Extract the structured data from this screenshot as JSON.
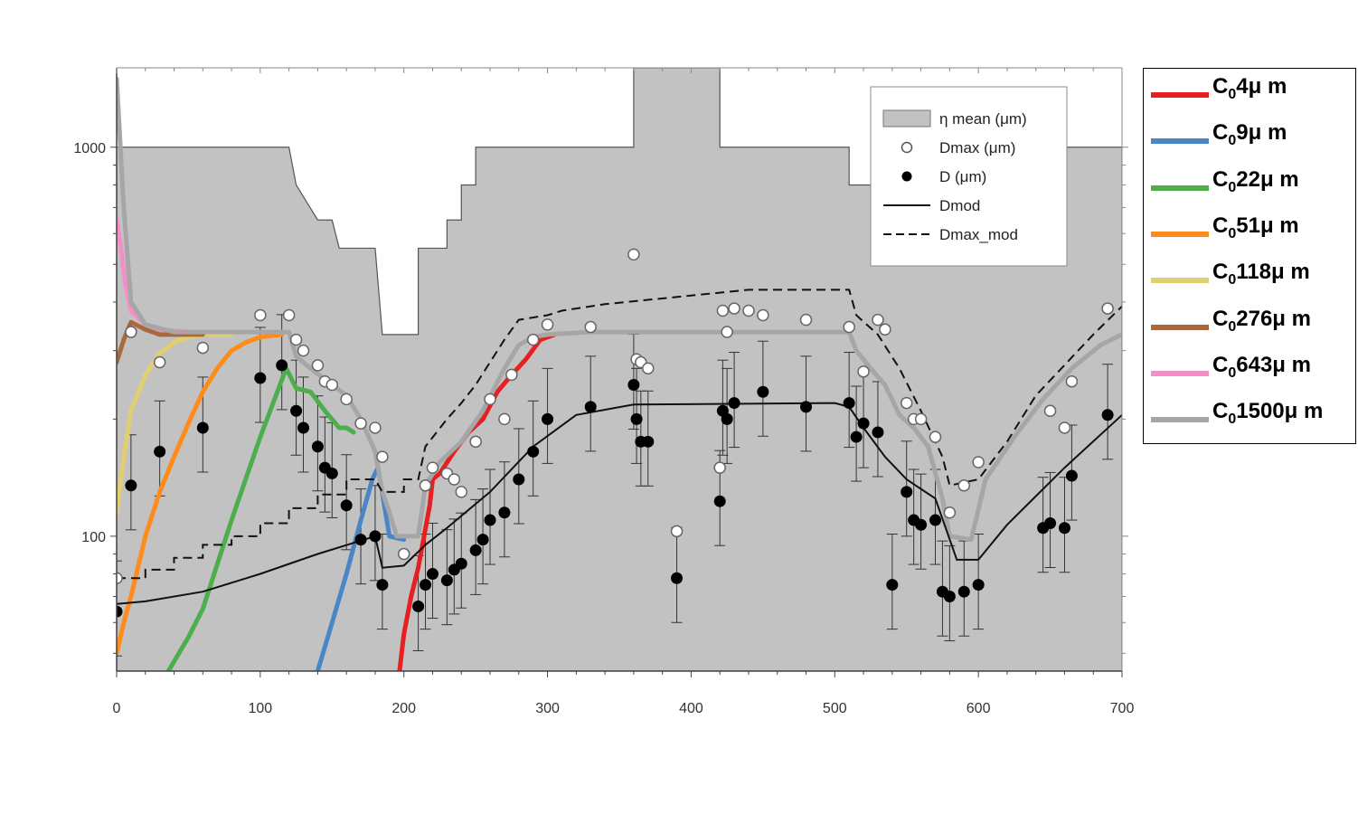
{
  "chart_data": {
    "type": "line",
    "xlim": [
      0,
      700
    ],
    "ylim": [
      45,
      1600
    ],
    "yscale": "log",
    "grid": false,
    "x_ticks": [
      0,
      100,
      200,
      300,
      400,
      500,
      600,
      700
    ],
    "y_ticks": [
      100,
      1000
    ],
    "eta_mean": {
      "label": "η mean (μm)",
      "color": "#c2c2c2",
      "steps": [
        [
          0,
          1000
        ],
        [
          120,
          1000
        ],
        [
          125,
          800
        ],
        [
          140,
          650
        ],
        [
          150,
          650
        ],
        [
          155,
          550
        ],
        [
          175,
          550
        ],
        [
          180,
          550
        ],
        [
          185,
          330
        ],
        [
          210,
          330
        ],
        [
          210,
          550
        ],
        [
          230,
          550
        ],
        [
          230,
          650
        ],
        [
          240,
          650
        ],
        [
          240,
          800
        ],
        [
          250,
          800
        ],
        [
          250,
          1000
        ],
        [
          360,
          1000
        ],
        [
          360,
          1600
        ],
        [
          420,
          1600
        ],
        [
          420,
          1000
        ],
        [
          510,
          1000
        ],
        [
          510,
          800
        ],
        [
          570,
          800
        ],
        [
          570,
          1000
        ],
        [
          700,
          1000
        ]
      ]
    },
    "dmax_obs": {
      "label": "Dmax (μm)",
      "points": [
        [
          0,
          78
        ],
        [
          10,
          335
        ],
        [
          30,
          280
        ],
        [
          60,
          305
        ],
        [
          100,
          370
        ],
        [
          120,
          370
        ],
        [
          125,
          320
        ],
        [
          130,
          300
        ],
        [
          140,
          275
        ],
        [
          145,
          250
        ],
        [
          150,
          245
        ],
        [
          160,
          225
        ],
        [
          170,
          195
        ],
        [
          180,
          190
        ],
        [
          185,
          160
        ],
        [
          200,
          90
        ],
        [
          215,
          135
        ],
        [
          220,
          150
        ],
        [
          230,
          145
        ],
        [
          235,
          140
        ],
        [
          240,
          130
        ],
        [
          250,
          175
        ],
        [
          260,
          225
        ],
        [
          270,
          200
        ],
        [
          275,
          260
        ],
        [
          290,
          320
        ],
        [
          300,
          350
        ],
        [
          330,
          345
        ],
        [
          360,
          530
        ],
        [
          362,
          285
        ],
        [
          365,
          280
        ],
        [
          370,
          270
        ],
        [
          390,
          103
        ],
        [
          420,
          150
        ],
        [
          422,
          380
        ],
        [
          425,
          335
        ],
        [
          430,
          385
        ],
        [
          440,
          380
        ],
        [
          450,
          370
        ],
        [
          480,
          360
        ],
        [
          510,
          345
        ],
        [
          520,
          265
        ],
        [
          530,
          360
        ],
        [
          535,
          340
        ],
        [
          550,
          220
        ],
        [
          555,
          200
        ],
        [
          560,
          200
        ],
        [
          570,
          180
        ],
        [
          580,
          115
        ],
        [
          590,
          135
        ],
        [
          600,
          155
        ],
        [
          650,
          210
        ],
        [
          660,
          190
        ],
        [
          665,
          250
        ],
        [
          690,
          385
        ]
      ]
    },
    "d_obs": {
      "label": "D (μm)",
      "points": [
        [
          0,
          64
        ],
        [
          10,
          135
        ],
        [
          30,
          165
        ],
        [
          60,
          190
        ],
        [
          100,
          255
        ],
        [
          115,
          275
        ],
        [
          125,
          210
        ],
        [
          130,
          190
        ],
        [
          140,
          170
        ],
        [
          145,
          150
        ],
        [
          150,
          145
        ],
        [
          160,
          120
        ],
        [
          170,
          98
        ],
        [
          180,
          100
        ],
        [
          185,
          75
        ],
        [
          210,
          66
        ],
        [
          215,
          75
        ],
        [
          220,
          80
        ],
        [
          230,
          77
        ],
        [
          235,
          82
        ],
        [
          240,
          85
        ],
        [
          250,
          92
        ],
        [
          255,
          98
        ],
        [
          260,
          110
        ],
        [
          270,
          115
        ],
        [
          280,
          140
        ],
        [
          290,
          165
        ],
        [
          300,
          200
        ],
        [
          330,
          215
        ],
        [
          360,
          245
        ],
        [
          362,
          200
        ],
        [
          365,
          175
        ],
        [
          370,
          175
        ],
        [
          390,
          78
        ],
        [
          420,
          123
        ],
        [
          422,
          210
        ],
        [
          425,
          200
        ],
        [
          430,
          220
        ],
        [
          450,
          235
        ],
        [
          480,
          215
        ],
        [
          510,
          220
        ],
        [
          515,
          180
        ],
        [
          520,
          195
        ],
        [
          530,
          185
        ],
        [
          540,
          75
        ],
        [
          550,
          130
        ],
        [
          555,
          110
        ],
        [
          560,
          107
        ],
        [
          570,
          110
        ],
        [
          575,
          72
        ],
        [
          580,
          70
        ],
        [
          590,
          72
        ],
        [
          600,
          75
        ],
        [
          645,
          105
        ],
        [
          650,
          108
        ],
        [
          660,
          105
        ],
        [
          665,
          143
        ],
        [
          690,
          205
        ]
      ]
    },
    "d_mod": {
      "label": "Dmod",
      "points": [
        [
          0,
          67
        ],
        [
          20,
          68
        ],
        [
          60,
          72
        ],
        [
          100,
          80
        ],
        [
          140,
          90
        ],
        [
          180,
          100
        ],
        [
          185,
          83
        ],
        [
          200,
          84
        ],
        [
          215,
          95
        ],
        [
          230,
          105
        ],
        [
          260,
          130
        ],
        [
          290,
          170
        ],
        [
          320,
          205
        ],
        [
          360,
          218
        ],
        [
          500,
          220
        ],
        [
          510,
          215
        ],
        [
          520,
          190
        ],
        [
          535,
          160
        ],
        [
          550,
          140
        ],
        [
          570,
          125
        ],
        [
          585,
          87
        ],
        [
          600,
          87
        ],
        [
          620,
          107
        ],
        [
          660,
          150
        ],
        [
          700,
          205
        ]
      ]
    },
    "dmax_mod": {
      "label": "Dmax_mod",
      "points": [
        [
          0,
          78
        ],
        [
          20,
          78
        ],
        [
          20,
          82
        ],
        [
          40,
          82
        ],
        [
          40,
          88
        ],
        [
          60,
          88
        ],
        [
          60,
          95
        ],
        [
          80,
          95
        ],
        [
          80,
          100
        ],
        [
          100,
          100
        ],
        [
          100,
          108
        ],
        [
          120,
          108
        ],
        [
          120,
          118
        ],
        [
          140,
          118
        ],
        [
          140,
          128
        ],
        [
          160,
          128
        ],
        [
          160,
          140
        ],
        [
          180,
          140
        ],
        [
          180,
          140
        ],
        [
          185,
          130
        ],
        [
          200,
          130
        ],
        [
          200,
          140
        ],
        [
          210,
          140
        ],
        [
          215,
          170
        ],
        [
          230,
          200
        ],
        [
          240,
          220
        ],
        [
          250,
          245
        ],
        [
          260,
          280
        ],
        [
          270,
          320
        ],
        [
          280,
          360
        ],
        [
          300,
          370
        ],
        [
          310,
          380
        ],
        [
          340,
          395
        ],
        [
          440,
          430
        ],
        [
          510,
          430
        ],
        [
          515,
          370
        ],
        [
          530,
          330
        ],
        [
          545,
          270
        ],
        [
          560,
          210
        ],
        [
          575,
          160
        ],
        [
          580,
          135
        ],
        [
          600,
          140
        ],
        [
          620,
          175
        ],
        [
          640,
          230
        ],
        [
          680,
          330
        ],
        [
          700,
          390
        ]
      ]
    },
    "model_series": [
      {
        "name": "C04μ m",
        "c0": "4",
        "color": "#e62020",
        "points": [
          [
            197,
            45
          ],
          [
            200,
            56
          ],
          [
            205,
            70
          ],
          [
            210,
            83
          ],
          [
            218,
            120
          ],
          [
            220,
            140
          ],
          [
            225,
            145
          ],
          [
            235,
            165
          ],
          [
            245,
            185
          ],
          [
            255,
            200
          ],
          [
            265,
            235
          ],
          [
            275,
            260
          ],
          [
            285,
            285
          ],
          [
            295,
            320
          ],
          [
            305,
            330
          ]
        ]
      },
      {
        "name": "C09μ m",
        "c0": "9",
        "color": "#4a86c6",
        "points": [
          [
            140,
            45
          ],
          [
            150,
            60
          ],
          [
            160,
            80
          ],
          [
            170,
            110
          ],
          [
            178,
            140
          ],
          [
            182,
            150
          ],
          [
            190,
            100
          ],
          [
            200,
            98
          ]
        ]
      },
      {
        "name": "C022μ m",
        "c0": "22",
        "color": "#4cae4c",
        "points": [
          [
            36,
            45
          ],
          [
            50,
            55
          ],
          [
            60,
            65
          ],
          [
            80,
            110
          ],
          [
            100,
            180
          ],
          [
            110,
            225
          ],
          [
            118,
            270
          ],
          [
            125,
            240
          ],
          [
            135,
            235
          ],
          [
            145,
            210
          ],
          [
            155,
            190
          ],
          [
            160,
            190
          ],
          [
            165,
            185
          ]
        ]
      },
      {
        "name": "C051μ m",
        "c0": "51",
        "color": "#ff8c1a",
        "points": [
          [
            0,
            50
          ],
          [
            5,
            60
          ],
          [
            10,
            70
          ],
          [
            20,
            100
          ],
          [
            30,
            130
          ],
          [
            40,
            160
          ],
          [
            50,
            195
          ],
          [
            60,
            235
          ],
          [
            70,
            270
          ],
          [
            80,
            300
          ],
          [
            90,
            315
          ],
          [
            100,
            325
          ],
          [
            115,
            330
          ]
        ]
      },
      {
        "name": "C0118μ m",
        "c0": "118",
        "color": "#e0cf70",
        "points": [
          [
            0,
            115
          ],
          [
            5,
            160
          ],
          [
            10,
            210
          ],
          [
            20,
            260
          ],
          [
            30,
            295
          ],
          [
            40,
            315
          ],
          [
            50,
            325
          ],
          [
            60,
            330
          ],
          [
            80,
            330
          ]
        ]
      },
      {
        "name": "C0276μ m",
        "c0": "276",
        "color": "#a86a3c",
        "points": [
          [
            0,
            280
          ],
          [
            5,
            320
          ],
          [
            10,
            355
          ],
          [
            20,
            340
          ],
          [
            30,
            330
          ],
          [
            40,
            330
          ],
          [
            60,
            330
          ]
        ]
      },
      {
        "name": "C0643μ m",
        "c0": "643",
        "color": "#f48ec8",
        "points": [
          [
            0,
            650
          ],
          [
            3,
            550
          ],
          [
            6,
            450
          ],
          [
            10,
            380
          ],
          [
            20,
            350
          ],
          [
            30,
            340
          ],
          [
            50,
            335
          ]
        ]
      },
      {
        "name": "C01500μ m",
        "c0": "1500",
        "color": "#a6a6a6",
        "points": [
          [
            0,
            1500
          ],
          [
            5,
            700
          ],
          [
            10,
            400
          ],
          [
            20,
            350
          ],
          [
            40,
            335
          ],
          [
            120,
            335
          ],
          [
            125,
            290
          ],
          [
            135,
            270
          ],
          [
            150,
            245
          ],
          [
            160,
            230
          ],
          [
            170,
            200
          ],
          [
            180,
            165
          ],
          [
            185,
            130
          ],
          [
            190,
            115
          ],
          [
            195,
            100
          ],
          [
            210,
            100
          ],
          [
            215,
            135
          ],
          [
            225,
            155
          ],
          [
            240,
            175
          ],
          [
            255,
            210
          ],
          [
            270,
            270
          ],
          [
            280,
            310
          ],
          [
            290,
            325
          ],
          [
            300,
            330
          ],
          [
            330,
            335
          ],
          [
            510,
            335
          ],
          [
            515,
            300
          ],
          [
            525,
            270
          ],
          [
            535,
            245
          ],
          [
            545,
            205
          ],
          [
            555,
            190
          ],
          [
            565,
            170
          ],
          [
            575,
            125
          ],
          [
            580,
            100
          ],
          [
            595,
            98
          ],
          [
            605,
            140
          ],
          [
            625,
            180
          ],
          [
            645,
            225
          ],
          [
            665,
            270
          ],
          [
            685,
            310
          ],
          [
            700,
            330
          ]
        ]
      }
    ],
    "inner_legend": [
      {
        "label": "η mean (μm)",
        "kind": "patch"
      },
      {
        "label": "Dmax (μm)",
        "kind": "open-circle"
      },
      {
        "label": "D (μm)",
        "kind": "filled-circle"
      },
      {
        "label": "Dmod",
        "kind": "solid-line"
      },
      {
        "label": "Dmax_mod",
        "kind": "dashed-line"
      }
    ],
    "legend_placement": "top-right inside; model legend outside right"
  }
}
